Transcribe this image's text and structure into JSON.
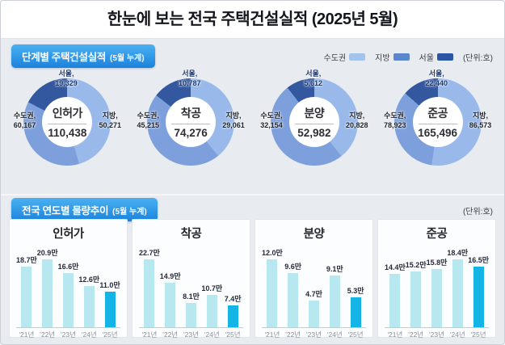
{
  "header": {
    "title": "한눈에 보는 전국 주택건설실적 (2025년 5월)"
  },
  "legend": {
    "items": [
      {
        "label": "수도권",
        "color": "#a3c4ea"
      },
      {
        "label": "지방",
        "color": "#5b86cb"
      },
      {
        "label": "서울",
        "color": "#2b55a4"
      }
    ],
    "unit": "(단위:호)"
  },
  "section_stage": {
    "badge": "단계별 주택건설실적",
    "badge_sub": "(5월 누계)"
  },
  "section_trend": {
    "badge": "전국 연도별 물량추이",
    "badge_sub": "(5월 누계)",
    "unit": "(단위:호)"
  },
  "chart_data": {
    "donuts": {
      "type": "pie",
      "unit": "호",
      "colors": {
        "jibang": "#98b9ea",
        "sudogwon": "#7d9fdc",
        "seoul": "#33589f"
      },
      "charts": [
        {
          "name": "인허가",
          "total": 110438,
          "total_label": "110,438",
          "sudogwon": {
            "label": "수도권,",
            "value": 60167,
            "value_label": "60,167"
          },
          "jibang": {
            "label": "지방,",
            "value": 50271,
            "value_label": "50,271"
          },
          "seoul": {
            "label": "서울,",
            "value": 19329,
            "value_label": "19,329"
          }
        },
        {
          "name": "착공",
          "total": 74276,
          "total_label": "74,276",
          "sudogwon": {
            "label": "수도권,",
            "value": 45215,
            "value_label": "45,215"
          },
          "jibang": {
            "label": "지방,",
            "value": 29061,
            "value_label": "29,061"
          },
          "seoul": {
            "label": "서울,",
            "value": 10787,
            "value_label": "10,787"
          }
        },
        {
          "name": "분양",
          "total": 52982,
          "total_label": "52,982",
          "sudogwon": {
            "label": "수도권,",
            "value": 32154,
            "value_label": "32,154"
          },
          "jibang": {
            "label": "지방,",
            "value": 20828,
            "value_label": "20,828"
          },
          "seoul": {
            "label": "서울,",
            "value": 5612,
            "value_label": "5,612"
          }
        },
        {
          "name": "준공",
          "total": 165496,
          "total_label": "165,496",
          "sudogwon": {
            "label": "수도권,",
            "value": 78923,
            "value_label": "78,923"
          },
          "jibang": {
            "label": "지방,",
            "value": 86573,
            "value_label": "86,573"
          },
          "seoul": {
            "label": "서울,",
            "value": 22440,
            "value_label": "22,440"
          }
        }
      ]
    },
    "bars": {
      "type": "bar",
      "categories": [
        "'21년",
        "'22년",
        "'23년",
        "'24년",
        "'25년"
      ],
      "unit": "만",
      "bar_color": "#b7e8f0",
      "highlight_color": "#15b4e7",
      "highlight_index": 4,
      "charts": [
        {
          "title": "인허가",
          "values": [
            18.7,
            20.9,
            16.6,
            12.6,
            11.0
          ],
          "value_labels": [
            "18.7만",
            "20.9만",
            "16.6만",
            "12.6만",
            "11.0만"
          ]
        },
        {
          "title": "착공",
          "values": [
            22.7,
            14.9,
            8.1,
            10.7,
            7.4
          ],
          "value_labels": [
            "22.7만",
            "14.9만",
            "8.1만",
            "10.7만",
            "7.4만"
          ]
        },
        {
          "title": "분양",
          "values": [
            12.0,
            9.6,
            4.7,
            9.1,
            5.3
          ],
          "value_labels": [
            "12.0만",
            "9.6만",
            "4.7만",
            "9.1만",
            "5.3만"
          ]
        },
        {
          "title": "준공",
          "values": [
            14.4,
            15.2,
            15.8,
            18.4,
            16.5
          ],
          "value_labels": [
            "14.4만",
            "15.2만",
            "15.8만",
            "18.4만",
            "16.5만"
          ]
        }
      ]
    }
  }
}
